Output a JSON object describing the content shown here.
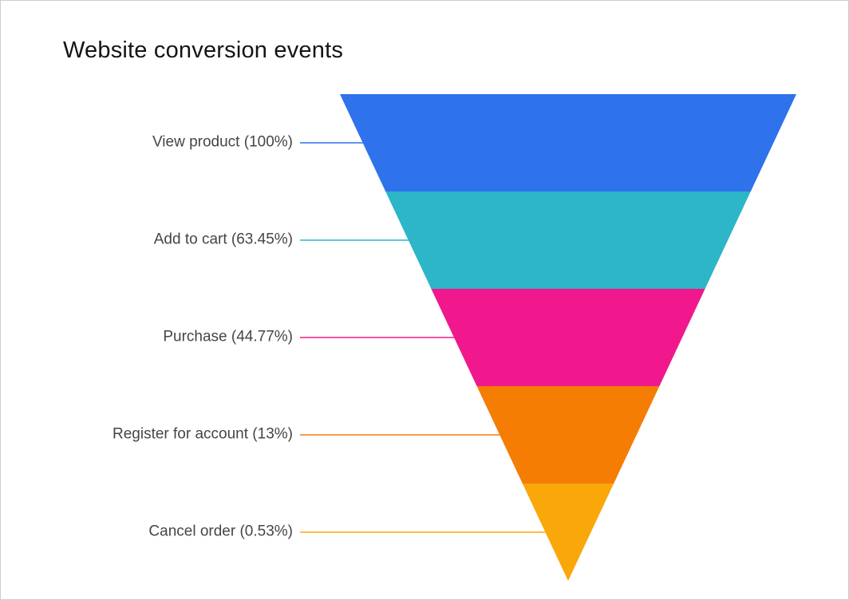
{
  "title": "Website conversion events",
  "chart_data": {
    "type": "funnel",
    "variant": "inverted-pyramid",
    "title": "Website conversion events",
    "legend": "none",
    "value_unit": "%",
    "stages": [
      {
        "label": "View product",
        "percent": 100,
        "display": "View product (100%)",
        "color": "#2E72EC"
      },
      {
        "label": "Add to cart",
        "percent": 63.45,
        "display": "Add to cart (63.45%)",
        "color": "#2DB5C8"
      },
      {
        "label": "Purchase",
        "percent": 44.77,
        "display": "Purchase (44.77%)",
        "color": "#F0188C"
      },
      {
        "label": "Register for account",
        "percent": 13,
        "display": "Register for account (13%)",
        "color": "#F57D04"
      },
      {
        "label": "Cancel order",
        "percent": 0.53,
        "display": "Cancel order (0.53%)",
        "color": "#FAA70A"
      }
    ]
  }
}
